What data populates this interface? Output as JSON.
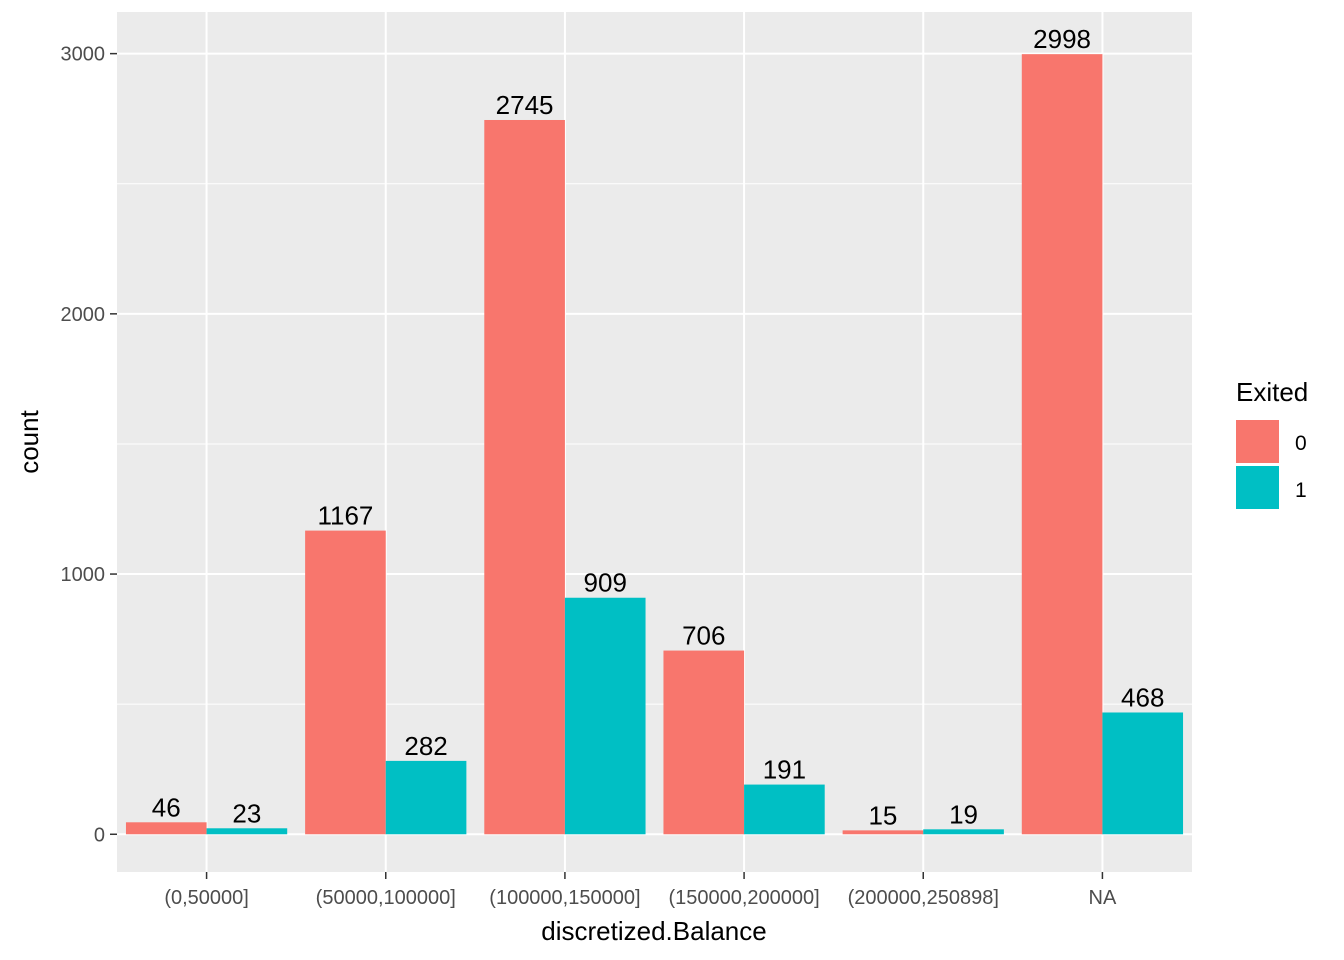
{
  "chart_data": {
    "type": "bar",
    "xlabel": "discretized.Balance",
    "ylabel": "count",
    "categories": [
      "(0,50000]",
      "(50000,100000]",
      "(100000,150000]",
      "(150000,200000]",
      "(200000,250898]",
      "NA"
    ],
    "series": [
      {
        "name": "0",
        "color": "#F8766D",
        "values": [
          46,
          1167,
          2745,
          706,
          15,
          2998
        ]
      },
      {
        "name": "1",
        "color": "#00BFC4",
        "values": [
          23,
          282,
          909,
          191,
          19,
          468
        ]
      }
    ],
    "ylim": [
      -145,
      3160
    ],
    "yticks": [
      0,
      1000,
      2000,
      3000
    ],
    "grid": true,
    "panel_background": "#EBEBEB",
    "legend": {
      "title": "Exited",
      "position": "right"
    }
  }
}
